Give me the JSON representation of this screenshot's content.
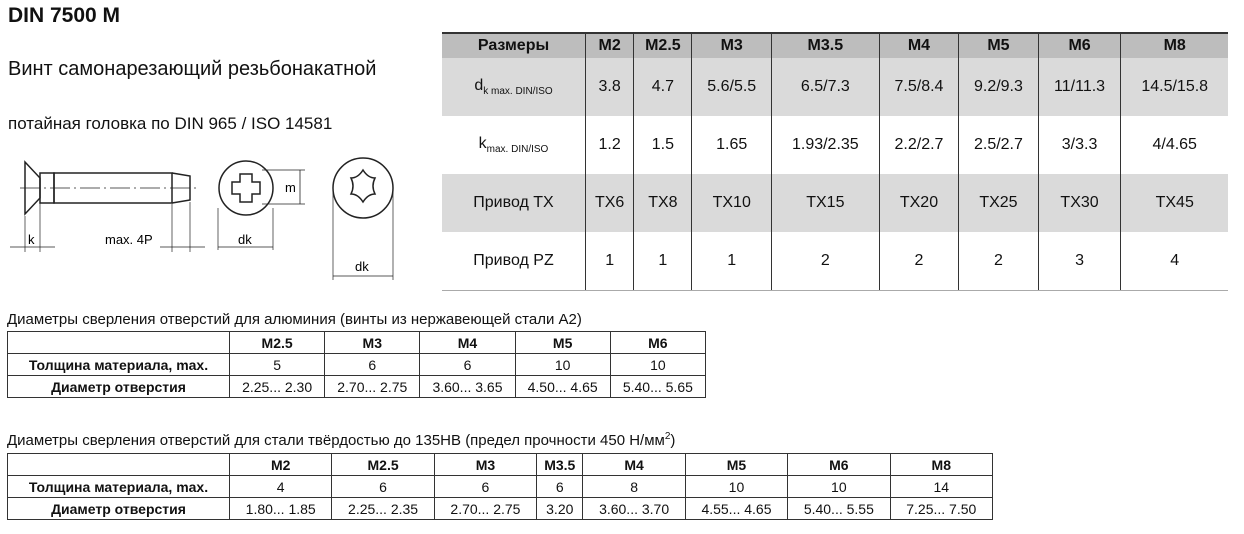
{
  "title": "DIN 7500 M",
  "subtitle": "Винт самонарезающий резьбонакатной",
  "subtitle2": "потайная головка по DIN 965 / ISO 14581",
  "drawing": {
    "label_k": "k",
    "label_len": "max. 4P",
    "label_dk": "dk",
    "label_m": "m",
    "icons": [
      "screw-side-view",
      "pozidriv-head",
      "torx-head"
    ]
  },
  "main_table": {
    "header": [
      "Размеры",
      "M2",
      "M2.5",
      "M3",
      "M3.5",
      "M4",
      "M5",
      "M6",
      "M8"
    ],
    "rows": [
      {
        "label": "d",
        "sub": "k max. DIN/ISO",
        "values": [
          "3.8",
          "4.7",
          "5.6/5.5",
          "6.5/7.3",
          "7.5/8.4",
          "9.2/9.3",
          "11/11.3",
          "14.5/15.8"
        ]
      },
      {
        "label": "k",
        "sub": "max. DIN/ISO",
        "values": [
          "1.2",
          "1.5",
          "1.65",
          "1.93/2.35",
          "2.2/2.7",
          "2.5/2.7",
          "3/3.3",
          "4/4.65"
        ]
      },
      {
        "label": "Привод TX",
        "sub": "",
        "values": [
          "TX6",
          "TX8",
          "TX10",
          "TX15",
          "TX20",
          "TX25",
          "TX30",
          "TX45"
        ]
      },
      {
        "label": "Привод PZ",
        "sub": "",
        "values": [
          "1",
          "1",
          "1",
          "2",
          "2",
          "2",
          "3",
          "4"
        ]
      }
    ]
  },
  "alu": {
    "caption": "Диаметры сверления отверстий для алюминия (винты из нержавеющей стали А2)",
    "header": [
      "",
      "M2.5",
      "M3",
      "M4",
      "M5",
      "M6"
    ],
    "rows": [
      [
        "Толщина материала, max.",
        "5",
        "6",
        "6",
        "10",
        "10"
      ],
      [
        "Диаметр отверстия",
        "2.25... 2.30",
        "2.70... 2.75",
        "3.60... 3.65",
        "4.50... 4.65",
        "5.40... 5.65"
      ]
    ]
  },
  "steel": {
    "caption": "Диаметры сверления отверстий для стали твёрдостью до 135HB (предел прочности 450 Н/мм",
    "caption_sup": "2",
    "caption_end": ")",
    "header": [
      "",
      "M2",
      "M2.5",
      "M3",
      "M3.5",
      "M4",
      "M5",
      "M6",
      "M8"
    ],
    "rows": [
      [
        "Толщина материала, max.",
        "4",
        "6",
        "6",
        "6",
        "8",
        "10",
        "10",
        "14"
      ],
      [
        "Диаметр отверстия",
        "1.80... 1.85",
        "2.25... 2.35",
        "2.70... 2.75",
        "3.20",
        "3.60... 3.70",
        "4.55... 4.65",
        "5.40... 5.55",
        "7.25... 7.50"
      ]
    ]
  }
}
